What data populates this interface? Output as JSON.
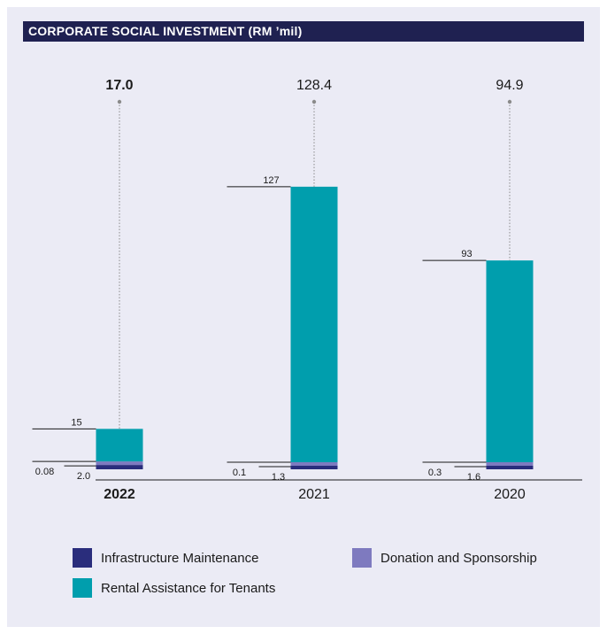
{
  "chart_data": {
    "type": "bar",
    "title": "CORPORATE SOCIAL INVESTMENT (RM ’mil)",
    "categories": [
      "2022",
      "2021",
      "2020"
    ],
    "totals": [
      "17.0",
      "128.4",
      "94.9"
    ],
    "highlight_category": "2022",
    "series": [
      {
        "name": "Infrastructure Maintenance",
        "values": [
          2.0,
          1.3,
          1.6
        ],
        "labels": [
          "2.0",
          "1.3",
          "1.6"
        ],
        "color": "#2a2d7c"
      },
      {
        "name": "Donation and Sponsorship",
        "values": [
          0.08,
          0.1,
          0.3
        ],
        "labels": [
          "0.08",
          "0.1",
          "0.3"
        ],
        "color": "#7e7abf"
      },
      {
        "name": "Rental Assistance for Tenants",
        "values": [
          15,
          127,
          93
        ],
        "labels": [
          "15",
          "127",
          "93"
        ],
        "color": "#009ead"
      }
    ],
    "stacked": true,
    "legend_position": "bottom"
  }
}
